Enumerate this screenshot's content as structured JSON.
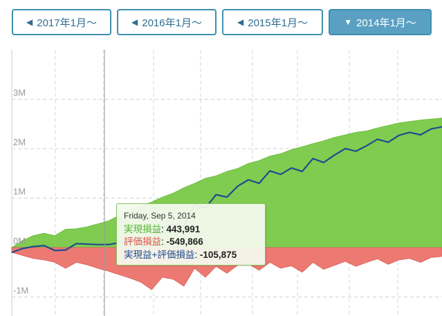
{
  "range_buttons": [
    {
      "label": "2017年1月〜",
      "active": false
    },
    {
      "label": "2016年1月〜",
      "active": false
    },
    {
      "label": "2015年1月〜",
      "active": false
    },
    {
      "label": "2014年1月〜",
      "active": true
    }
  ],
  "tooltip": {
    "date": "Friday, Sep 5, 2014",
    "realized_label": "実現損益",
    "realized_value": "443,991",
    "unrealized_label": "評価損益",
    "unrealized_value": "-549,866",
    "total_label": "実現益+評価損益",
    "total_value": "-105,875"
  },
  "colors": {
    "realized_fill": "#7fcc50",
    "unrealized_fill": "#ec7a72",
    "total_line": "#1f4b8f",
    "button_border": "#3e8fae",
    "button_active_bg": "#5aa0c3",
    "realized_text": "#58b336",
    "unrealized_text": "#e0544a",
    "total_text": "#1f4b8f"
  },
  "chart_data": {
    "type": "area",
    "y_ticks": [
      "-1M",
      "0M",
      "1M",
      "2M",
      "3M"
    ],
    "ylim": [
      -1100000,
      3500000
    ],
    "grid": true,
    "x": [
      0,
      4,
      8,
      12,
      16,
      20,
      24,
      28,
      32,
      36,
      40,
      44,
      48,
      52,
      56,
      60,
      64,
      68,
      72,
      76,
      80,
      84,
      88,
      92,
      96,
      100,
      104,
      108,
      112,
      116,
      120,
      124,
      128,
      132,
      136,
      140,
      144,
      148,
      152,
      156,
      160
    ],
    "series": [
      {
        "name": "実現損益",
        "values": [
          0,
          140000,
          240000,
          290000,
          240000,
          370000,
          380000,
          420000,
          480000,
          540000,
          650000,
          760000,
          840000,
          920000,
          1020000,
          1100000,
          1210000,
          1300000,
          1400000,
          1450000,
          1540000,
          1600000,
          1700000,
          1760000,
          1850000,
          1900000,
          1980000,
          2040000,
          2100000,
          2160000,
          2230000,
          2280000,
          2330000,
          2360000,
          2420000,
          2470000,
          2520000,
          2550000,
          2580000,
          2600000,
          2620000
        ]
      },
      {
        "name": "評価損益",
        "values": [
          -100000,
          -160000,
          -220000,
          -250000,
          -300000,
          -420000,
          -300000,
          -350000,
          -420000,
          -480000,
          -550000,
          -620000,
          -700000,
          -850000,
          -600000,
          -640000,
          -780000,
          -420000,
          -600000,
          -380000,
          -520000,
          -360000,
          -330000,
          -460000,
          -300000,
          -420000,
          -370000,
          -500000,
          -300000,
          -440000,
          -360000,
          -280000,
          -380000,
          -300000,
          -230000,
          -340000,
          -250000,
          -220000,
          -300000,
          -200000,
          -180000
        ]
      },
      {
        "name": "実現益+評価損益",
        "values": [
          -100000,
          -20000,
          20000,
          40000,
          -60000,
          -50000,
          80000,
          70000,
          60000,
          60000,
          100000,
          140000,
          140000,
          70000,
          420000,
          460000,
          430000,
          880000,
          800000,
          1070000,
          1020000,
          1240000,
          1370000,
          1300000,
          1550000,
          1480000,
          1610000,
          1540000,
          1800000,
          1720000,
          1870000,
          2000000,
          1950000,
          2060000,
          2190000,
          2130000,
          2270000,
          2330000,
          2280000,
          2400000,
          2440000
        ]
      }
    ]
  }
}
